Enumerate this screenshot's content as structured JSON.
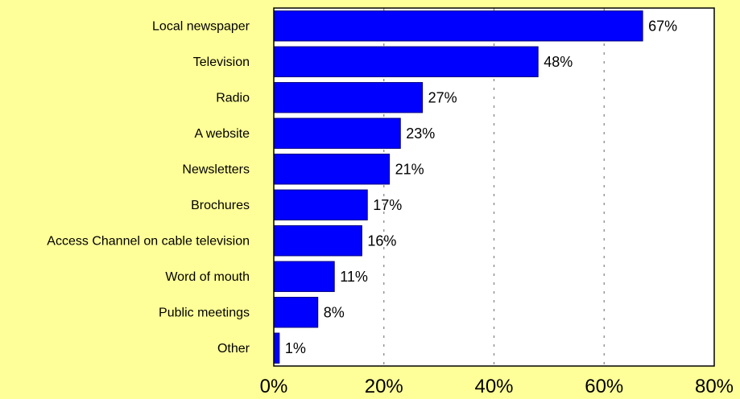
{
  "chart_data": {
    "type": "bar",
    "orientation": "horizontal",
    "categories": [
      "Local newspaper",
      "Television",
      "Radio",
      "A website",
      "Newsletters",
      "Brochures",
      "Access Channel on cable television",
      "Word of mouth",
      "Public meetings",
      "Other"
    ],
    "values": [
      67,
      48,
      27,
      23,
      21,
      17,
      16,
      11,
      8,
      1
    ],
    "data_labels": [
      "67%",
      "48%",
      "27%",
      "23%",
      "21%",
      "17%",
      "16%",
      "11%",
      "8%",
      "1%"
    ],
    "title": "",
    "xlabel": "",
    "ylabel": "",
    "xlim": [
      0,
      80
    ],
    "x_ticks": [
      0,
      20,
      40,
      60,
      80
    ],
    "x_tick_labels": [
      "0%",
      "20%",
      "40%",
      "60%",
      "80%"
    ],
    "grid": "vertical dashed",
    "legend": "none"
  },
  "colors": {
    "background": "#ffff99",
    "plot_area": "#ffffff",
    "bar_fill": "#0000ff",
    "bar_stroke": "#000080",
    "grid": "#808080",
    "text": "#000000"
  }
}
